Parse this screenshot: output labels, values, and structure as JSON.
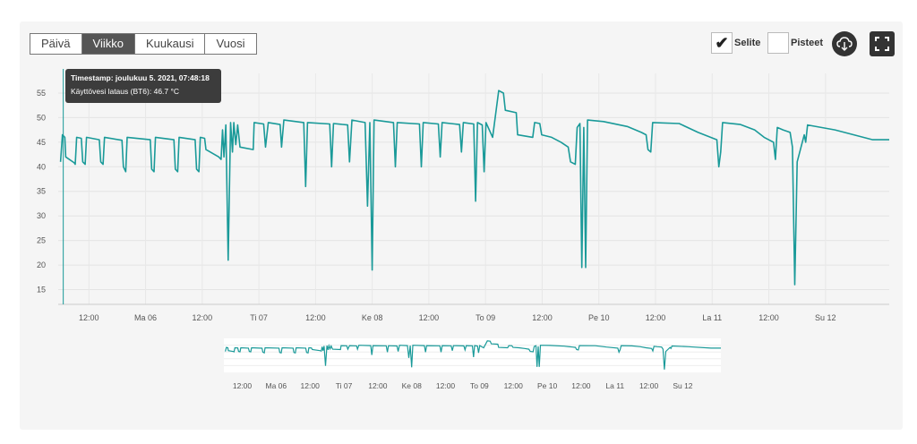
{
  "range_tabs": [
    "Päivä",
    "Viikko",
    "Kuukausi",
    "Vuosi"
  ],
  "active_tab_index": 1,
  "legend_toggle": {
    "label": "Selite",
    "checked": true
  },
  "points_toggle": {
    "label": "Pisteet",
    "checked": false
  },
  "icons": {
    "download": "cloud-download-icon",
    "fullscreen": "fullscreen-icon"
  },
  "colors": {
    "series": "#1a9a99",
    "active_tab": "#555555",
    "tooltip_bg": "#3c3c3c"
  },
  "tooltip": {
    "title": "Timestamp: joulukuu 5. 2021, 07:48:18",
    "value": "Käyttövesi lataus (BT6): 46.7 °C"
  },
  "chart_data": {
    "type": "line",
    "x_unit": "hours since 5.12. 00:00",
    "xlim": [
      5.5,
      181.5
    ],
    "ylim": [
      12,
      59
    ],
    "y_ticks": [
      15,
      20,
      25,
      30,
      35,
      40,
      45,
      50,
      55
    ],
    "x_ticks": [
      {
        "h": 12,
        "label": "12:00"
      },
      {
        "h": 24,
        "label": "Ma 06"
      },
      {
        "h": 36,
        "label": "12:00"
      },
      {
        "h": 48,
        "label": "Ti 07"
      },
      {
        "h": 60,
        "label": "12:00"
      },
      {
        "h": 72,
        "label": "Ke 08"
      },
      {
        "h": 84,
        "label": "12:00"
      },
      {
        "h": 96,
        "label": "To 09"
      },
      {
        "h": 108,
        "label": "12:00"
      },
      {
        "h": 120,
        "label": "Pe 10"
      },
      {
        "h": 132,
        "label": "12:00"
      },
      {
        "h": 144,
        "label": "La 11"
      },
      {
        "h": 156,
        "label": "12:00"
      },
      {
        "h": 168,
        "label": "Su 12"
      }
    ],
    "grid": true,
    "series": [
      {
        "name": "Käyttövesi lataus (BT6)",
        "points": [
          [
            6.0,
            41
          ],
          [
            6.4,
            46.5
          ],
          [
            6.9,
            46
          ],
          [
            7.1,
            42
          ],
          [
            8.9,
            40.8
          ],
          [
            9.1,
            40.5
          ],
          [
            9.4,
            46
          ],
          [
            10.4,
            45.8
          ],
          [
            10.7,
            41
          ],
          [
            11.2,
            40.5
          ],
          [
            11.5,
            46
          ],
          [
            14.2,
            45.5
          ],
          [
            14.5,
            41
          ],
          [
            15.0,
            40.5
          ],
          [
            15.3,
            46
          ],
          [
            19.0,
            45.4
          ],
          [
            19.3,
            40
          ],
          [
            19.8,
            39
          ],
          [
            20.1,
            46
          ],
          [
            25.0,
            45.5
          ],
          [
            25.3,
            39.5
          ],
          [
            25.8,
            39
          ],
          [
            26.1,
            46
          ],
          [
            30.0,
            45.5
          ],
          [
            30.3,
            39.5
          ],
          [
            30.8,
            39
          ],
          [
            31.1,
            46
          ],
          [
            34.5,
            45.5
          ],
          [
            34.8,
            39.5
          ],
          [
            35.3,
            39
          ],
          [
            35.6,
            46
          ],
          [
            36.5,
            45.8
          ],
          [
            36.8,
            43.5
          ],
          [
            39.5,
            42
          ],
          [
            40.0,
            41.5
          ],
          [
            40.3,
            47.5
          ],
          [
            40.6,
            42
          ],
          [
            41.0,
            48.5
          ],
          [
            41.5,
            21
          ],
          [
            42.0,
            49
          ],
          [
            42.4,
            43
          ],
          [
            42.7,
            49
          ],
          [
            43.1,
            44.5
          ],
          [
            43.5,
            48.5
          ],
          [
            44.0,
            44
          ],
          [
            46.8,
            43.5
          ],
          [
            47.0,
            49
          ],
          [
            49.0,
            48.7
          ],
          [
            49.4,
            44
          ],
          [
            50.0,
            49
          ],
          [
            52.5,
            48.6
          ],
          [
            52.8,
            44
          ],
          [
            53.3,
            49.5
          ],
          [
            57.5,
            49
          ],
          [
            57.9,
            36
          ],
          [
            58.3,
            49
          ],
          [
            63.0,
            48.7
          ],
          [
            63.4,
            40
          ],
          [
            63.8,
            48.8
          ],
          [
            66.8,
            48.5
          ],
          [
            67.2,
            41
          ],
          [
            67.7,
            49.5
          ],
          [
            70.5,
            49
          ],
          [
            71.0,
            32
          ],
          [
            71.5,
            49
          ],
          [
            72.0,
            19
          ],
          [
            72.4,
            49.5
          ],
          [
            76.5,
            49
          ],
          [
            76.9,
            40
          ],
          [
            77.3,
            49
          ],
          [
            82.0,
            48.7
          ],
          [
            82.4,
            40
          ],
          [
            82.8,
            49
          ],
          [
            86.0,
            48.7
          ],
          [
            86.4,
            42
          ],
          [
            86.8,
            49
          ],
          [
            90.5,
            48.6
          ],
          [
            90.9,
            43
          ],
          [
            91.3,
            49
          ],
          [
            93.5,
            48.7
          ],
          [
            93.9,
            33
          ],
          [
            94.3,
            49
          ],
          [
            95.3,
            48.5
          ],
          [
            95.7,
            39
          ],
          [
            96.1,
            49
          ],
          [
            97.5,
            46
          ],
          [
            98.8,
            55.5
          ],
          [
            99.8,
            55
          ],
          [
            100.2,
            51.5
          ],
          [
            102.5,
            51
          ],
          [
            102.8,
            46.5
          ],
          [
            106.0,
            46
          ],
          [
            106.4,
            49
          ],
          [
            107.5,
            48.8
          ],
          [
            107.9,
            46.5
          ],
          [
            110.0,
            46
          ],
          [
            112.0,
            45
          ],
          [
            113.5,
            44
          ],
          [
            114.0,
            41
          ],
          [
            115.0,
            40.5
          ],
          [
            115.4,
            48
          ],
          [
            116.0,
            48.8
          ],
          [
            116.4,
            19.5
          ],
          [
            116.8,
            48
          ],
          [
            117.2,
            19.5
          ],
          [
            117.6,
            49.5
          ],
          [
            121.0,
            49.2
          ],
          [
            126.0,
            48.2
          ],
          [
            129.0,
            47
          ],
          [
            130.0,
            46.5
          ],
          [
            130.4,
            43.5
          ],
          [
            131.0,
            43
          ],
          [
            131.4,
            49
          ],
          [
            137.0,
            48.8
          ],
          [
            141.0,
            47
          ],
          [
            145.0,
            45.5
          ],
          [
            145.4,
            40
          ],
          [
            145.8,
            43
          ],
          [
            146.2,
            49
          ],
          [
            150.0,
            48.6
          ],
          [
            153.0,
            47.5
          ],
          [
            155.0,
            46
          ],
          [
            157.0,
            45
          ],
          [
            157.4,
            41.5
          ],
          [
            157.8,
            48
          ],
          [
            159.0,
            47.5
          ],
          [
            160.5,
            47
          ],
          [
            161.0,
            44
          ],
          [
            161.5,
            16
          ],
          [
            162.0,
            41
          ],
          [
            163.5,
            46.5
          ],
          [
            163.8,
            45
          ],
          [
            164.2,
            48.5
          ],
          [
            170.0,
            47.5
          ],
          [
            178.0,
            45.5
          ],
          [
            181.5,
            45.5
          ]
        ]
      }
    ],
    "navigator": {
      "x_ticks": [
        {
          "h": 12,
          "label": "12:00"
        },
        {
          "h": 24,
          "label": "Ma 06"
        },
        {
          "h": 36,
          "label": "12:00"
        },
        {
          "h": 48,
          "label": "Ti 07"
        },
        {
          "h": 60,
          "label": "12:00"
        },
        {
          "h": 72,
          "label": "Ke 08"
        },
        {
          "h": 84,
          "label": "12:00"
        },
        {
          "h": 96,
          "label": "To 09"
        },
        {
          "h": 108,
          "label": "12:00"
        },
        {
          "h": 120,
          "label": "Pe 10"
        },
        {
          "h": 132,
          "label": "12:00"
        },
        {
          "h": 144,
          "label": "La 11"
        },
        {
          "h": 156,
          "label": "12:00"
        },
        {
          "h": 168,
          "label": "Su 12"
        }
      ]
    }
  }
}
